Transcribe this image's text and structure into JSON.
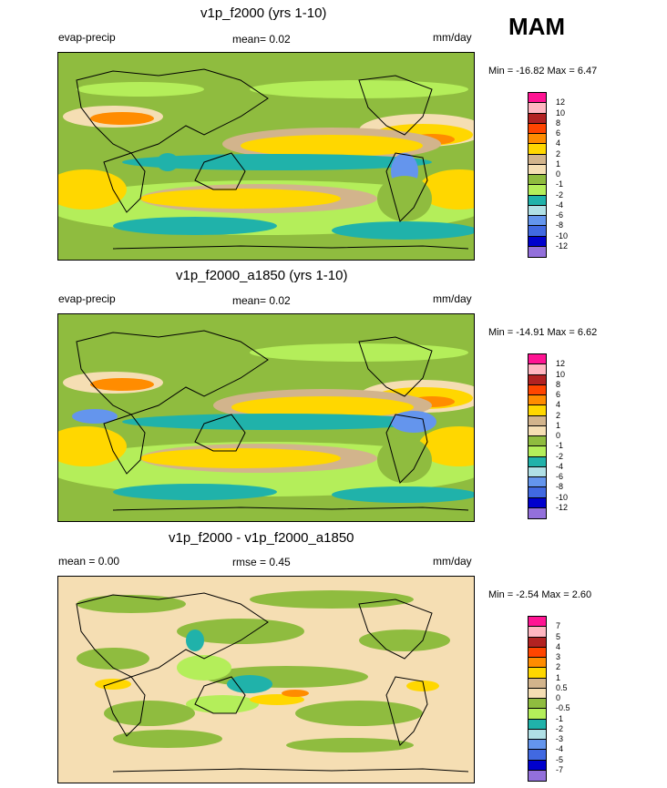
{
  "season": "MAM",
  "panels": [
    {
      "title": "v1p_f2000 (yrs 1-10)",
      "left_label": "evap-precip",
      "center_label": "mean=   0.02",
      "units": "mm/day",
      "minmax": "Min = -16.82 Max =   6.47",
      "levels": [
        "12",
        "10",
        "8",
        "6",
        "4",
        "2",
        "1",
        "0",
        "-1",
        "-2",
        "-4",
        "-6",
        "-8",
        "-10",
        "-12"
      ],
      "colors": [
        "#ff1493",
        "#ffb6c1",
        "#b22222",
        "#ff4500",
        "#ff8c00",
        "#ffd700",
        "#d2b48c",
        "#f5deb3",
        "#8fbc3f",
        "#b4ee5a",
        "#20b2aa",
        "#b0e0e6",
        "#6495ed",
        "#4169e1",
        "#0000cd",
        "#9370db"
      ]
    },
    {
      "title": "v1p_f2000_a1850 (yrs 1-10)",
      "left_label": "evap-precip",
      "center_label": "mean=   0.02",
      "units": "mm/day",
      "minmax": "Min = -14.91 Max =   6.62",
      "levels": [
        "12",
        "10",
        "8",
        "6",
        "4",
        "2",
        "1",
        "0",
        "-1",
        "-2",
        "-4",
        "-6",
        "-8",
        "-10",
        "-12"
      ],
      "colors": [
        "#ff1493",
        "#ffb6c1",
        "#b22222",
        "#ff4500",
        "#ff8c00",
        "#ffd700",
        "#d2b48c",
        "#f5deb3",
        "#8fbc3f",
        "#b4ee5a",
        "#20b2aa",
        "#b0e0e6",
        "#6495ed",
        "#4169e1",
        "#0000cd",
        "#9370db"
      ]
    },
    {
      "title": "v1p_f2000 - v1p_f2000_a1850",
      "left_label": "mean =    0.00",
      "center_label": "rmse =   0.45",
      "units": "mm/day",
      "minmax": "Min =  -2.54 Max =   2.60",
      "levels": [
        "7",
        "5",
        "4",
        "3",
        "2",
        "1",
        "0.5",
        "0",
        "-0.5",
        "-1",
        "-2",
        "-3",
        "-4",
        "-5",
        "-7"
      ],
      "colors": [
        "#ff1493",
        "#ffb6c1",
        "#b22222",
        "#ff4500",
        "#ff8c00",
        "#ffd700",
        "#d2b48c",
        "#f5deb3",
        "#8fbc3f",
        "#b4ee5a",
        "#20b2aa",
        "#b0e0e6",
        "#6495ed",
        "#4169e1",
        "#0000cd",
        "#9370db"
      ]
    }
  ]
}
